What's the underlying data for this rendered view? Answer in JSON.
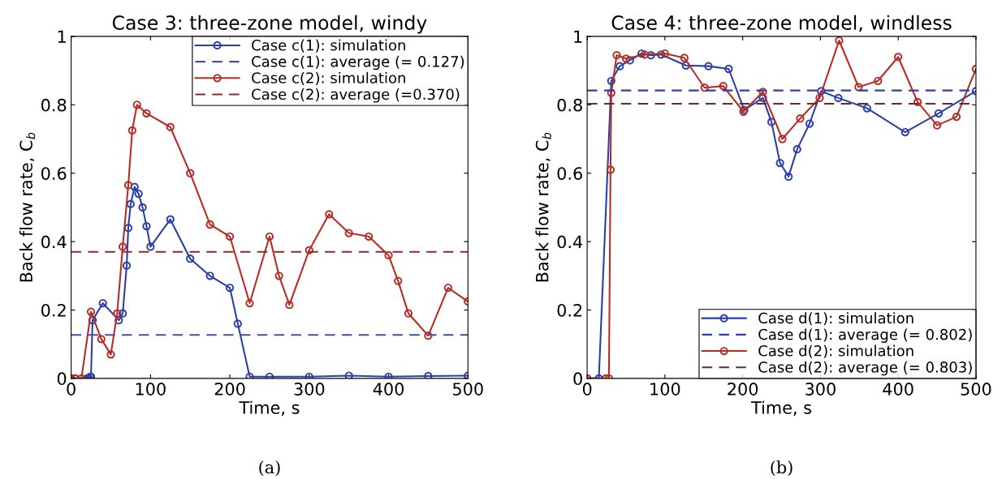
{
  "chart_data": [
    {
      "type": "line",
      "title": "Case 3: three-zone model, windy",
      "xlabel": "Time, s",
      "ylabel": "Back flow rate, C$_{b}$",
      "xlim": [
        0,
        500
      ],
      "xticks": [
        0,
        100,
        200,
        300,
        400,
        500
      ],
      "ylim": [
        0,
        1
      ],
      "yticks": [
        0,
        0.2,
        0.4,
        0.6,
        0.8,
        1
      ],
      "marker": "circle",
      "line_style": "solid",
      "grid": false,
      "legend": "top right",
      "annotations": [
        "(a)"
      ],
      "series": [
        {
          "name": "Case c(1): simulation",
          "color": "#2b3fa8",
          "x": [
            0,
            5,
            20,
            22,
            24,
            25,
            27,
            40,
            60,
            65,
            70,
            72,
            75,
            80,
            85,
            90,
            95,
            100,
            125,
            150,
            175,
            200,
            210,
            225,
            250,
            300,
            350,
            400,
            450,
            500
          ],
          "values": [
            0,
            0,
            0,
            0,
            0.005,
            0.005,
            0.17,
            0.22,
            0.17,
            0.19,
            0.33,
            0.44,
            0.51,
            0.56,
            0.54,
            0.5,
            0.445,
            0.385,
            0.465,
            0.35,
            0.3,
            0.265,
            0.16,
            0.005,
            0.005,
            0.005,
            0.008,
            0.005,
            0.007,
            0.008
          ]
        },
        {
          "name": "Case c(2): simulation",
          "color": "#b52d24",
          "x": [
            0,
            5,
            13,
            25,
            38,
            50,
            58,
            65,
            72,
            77,
            83,
            95,
            125,
            150,
            175,
            200,
            225,
            250,
            262,
            275,
            300,
            325,
            350,
            375,
            400,
            412,
            425,
            450,
            475,
            500
          ],
          "values": [
            0,
            0,
            0,
            0.195,
            0.115,
            0.07,
            0.19,
            0.385,
            0.565,
            0.725,
            0.8,
            0.775,
            0.735,
            0.6,
            0.45,
            0.415,
            0.22,
            0.415,
            0.3,
            0.215,
            0.375,
            0.48,
            0.425,
            0.415,
            0.36,
            0.285,
            0.19,
            0.125,
            0.265,
            0.225
          ]
        }
      ],
      "ref_lines": [
        {
          "axis": "y",
          "value": 0.127,
          "label": "Case c(1): average (= 0.127)",
          "color": "#4a4f9a",
          "line_style": "dashed"
        },
        {
          "axis": "y",
          "value": 0.37,
          "label": "Case c(2): average (=0.370)",
          "color": "#8b2a2a",
          "line_style": "dashed"
        }
      ]
    },
    {
      "type": "line",
      "title": "Case 4: three-zone model, windless",
      "xlabel": "Time, s",
      "ylabel": "Back flow rate, C$_{b}$",
      "xlim": [
        0,
        500
      ],
      "xticks": [
        0,
        100,
        200,
        300,
        400,
        500
      ],
      "ylim": [
        0,
        1
      ],
      "yticks": [
        0,
        0.2,
        0.4,
        0.6,
        0.8,
        1
      ],
      "marker": "circle",
      "line_style": "solid",
      "grid": false,
      "legend": "bottom right",
      "annotations": [
        "(b)"
      ],
      "series": [
        {
          "name": "Case d(1): simulation",
          "color": "#2b3fa8",
          "x": [
            0,
            15,
            31,
            42,
            55,
            70,
            82,
            95,
            127,
            156,
            182,
            202,
            226,
            237,
            248,
            259,
            270,
            286,
            301,
            323,
            360,
            409,
            452,
            500
          ],
          "values": [
            0,
            0,
            0.87,
            0.913,
            0.93,
            0.95,
            0.945,
            0.947,
            0.915,
            0.913,
            0.905,
            0.785,
            0.82,
            0.75,
            0.63,
            0.59,
            0.67,
            0.745,
            0.84,
            0.82,
            0.79,
            0.72,
            0.775,
            0.84
          ]
        },
        {
          "name": "Case d(2): simulation",
          "color": "#b52d24",
          "x": [
            0,
            24,
            28,
            30,
            31,
            38,
            50,
            74,
            100,
            125,
            151,
            175,
            201,
            226,
            251,
            274,
            299,
            324,
            349,
            374,
            400,
            425,
            450,
            475,
            500
          ],
          "values": [
            0,
            0,
            0,
            0.61,
            0.835,
            0.945,
            0.935,
            0.947,
            0.95,
            0.937,
            0.85,
            0.855,
            0.78,
            0.838,
            0.7,
            0.76,
            0.82,
            0.988,
            0.852,
            0.87,
            0.94,
            0.808,
            0.74,
            0.765,
            0.905
          ]
        }
      ],
      "ref_lines": [
        {
          "axis": "y",
          "value": 0.842,
          "label": "Case d(1): average (= 0.802)",
          "color": "#2b3fa8",
          "line_style": "dashed"
        },
        {
          "axis": "y",
          "value": 0.803,
          "label": "Case d(2): average (= 0.803)",
          "color": "#6b2a2a",
          "line_style": "dashed"
        }
      ]
    }
  ]
}
